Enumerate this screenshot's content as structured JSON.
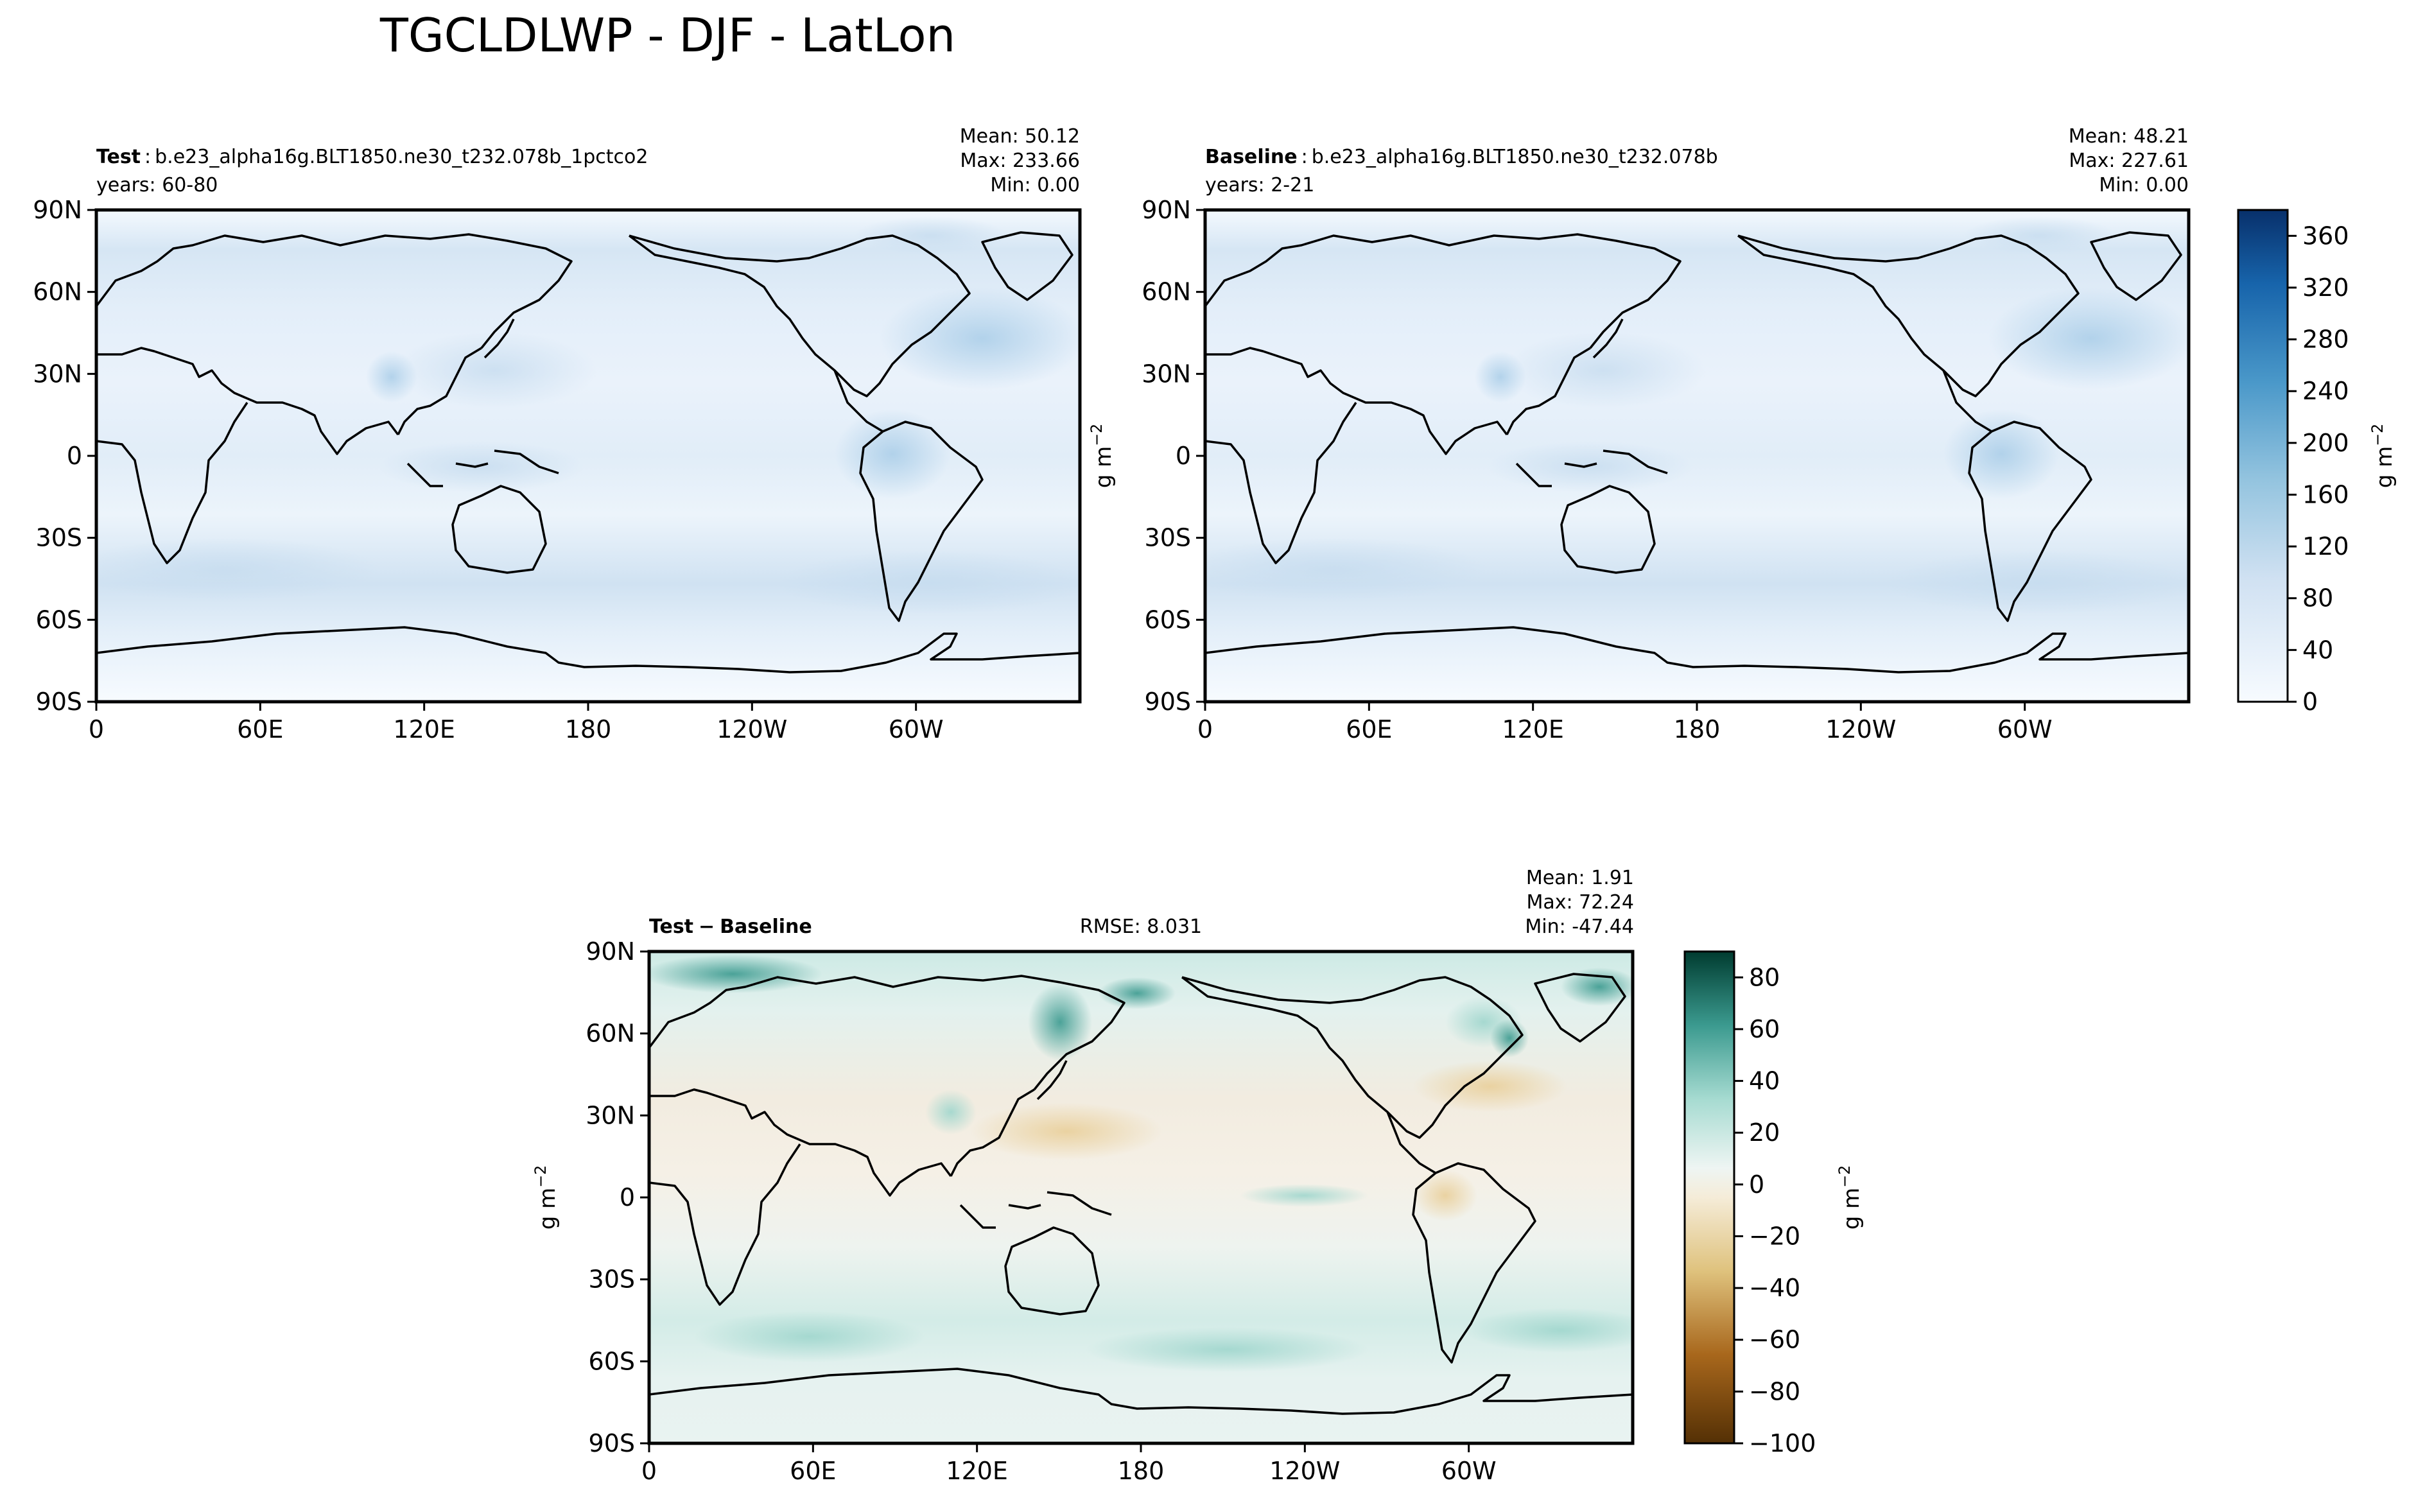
{
  "figure": {
    "title": "TGCLDLWP - DJF - LatLon"
  },
  "chart_data": [
    {
      "type": "heatmap",
      "panel": "test",
      "label_bold": "Test",
      "label_sep": ":",
      "case": "b.e23_alpha16g.BLT1850.ne30_t232.078b_1pctco2",
      "years": "years: 60-80",
      "stats": {
        "mean": "Mean: 50.12",
        "max": "Max: 233.66",
        "min": "Min:  0.00"
      },
      "x_ticks": [
        "0",
        "60E",
        "120E",
        "180",
        "120W",
        "60W"
      ],
      "y_ticks": [
        "90N",
        "60N",
        "30N",
        "0",
        "30S",
        "60S",
        "90S"
      ],
      "xlim": [
        0,
        360
      ],
      "ylim": [
        -90,
        90
      ],
      "colormap": "Blues"
    },
    {
      "type": "heatmap",
      "panel": "baseline",
      "label_bold": "Baseline",
      "label_sep": ":",
      "case": "b.e23_alpha16g.BLT1850.ne30_t232.078b",
      "years": "years: 2-21",
      "stats": {
        "mean": "Mean: 48.21",
        "max": "Max: 227.61",
        "min": "Min:  0.00"
      },
      "x_ticks": [
        "0",
        "60E",
        "120E",
        "180",
        "120W",
        "60W"
      ],
      "y_ticks": [
        "90N",
        "60N",
        "30N",
        "0",
        "30S",
        "60S",
        "90S"
      ],
      "xlim": [
        0,
        360
      ],
      "ylim": [
        -90,
        90
      ],
      "ylabel": "g m",
      "ylabel_sup": "−2",
      "colormap": "Blues",
      "colorbar": {
        "ticks": [
          "0",
          "40",
          "80",
          "120",
          "160",
          "200",
          "240",
          "280",
          "320",
          "360"
        ],
        "range": [
          0,
          380
        ],
        "label": "g m",
        "label_sup": "−2"
      }
    },
    {
      "type": "heatmap",
      "panel": "difference",
      "label_a": "Test",
      "label_op": "−",
      "label_b": "Baseline",
      "rmse": "RMSE: 8.031",
      "stats": {
        "mean": "Mean:  1.91",
        "max": "Max: 72.24",
        "min": "Min: -47.44"
      },
      "x_ticks": [
        "0",
        "60E",
        "120E",
        "180",
        "120W",
        "60W"
      ],
      "y_ticks": [
        "90N",
        "60N",
        "30N",
        "0",
        "30S",
        "60S",
        "90S"
      ],
      "xlim": [
        0,
        360
      ],
      "ylim": [
        -90,
        90
      ],
      "ylabel": "g m",
      "ylabel_sup": "−2",
      "colormap": "BrBG",
      "colorbar": {
        "ticks": [
          "−100",
          "−80",
          "−60",
          "−40",
          "−20",
          "0",
          "20",
          "40",
          "60",
          "80"
        ],
        "range": [
          -100,
          90
        ],
        "label": "g m",
        "label_sup": "−2"
      }
    }
  ]
}
